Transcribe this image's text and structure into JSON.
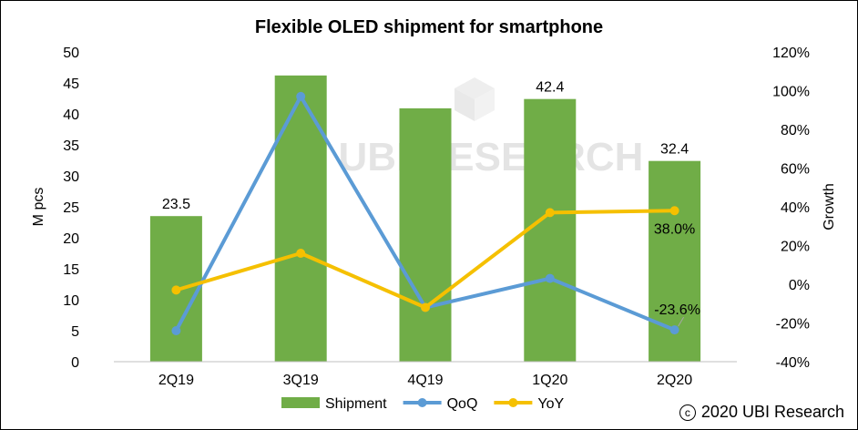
{
  "chart_data": {
    "type": "bar",
    "title": "Flexible OLED shipment for smartphone",
    "categories": [
      "2Q19",
      "3Q19",
      "4Q19",
      "1Q20",
      "2Q20"
    ],
    "series": [
      {
        "name": "Shipment",
        "type": "bar",
        "axis": "left",
        "values": [
          23.5,
          46.2,
          40.9,
          42.4,
          32.4
        ],
        "color": "#70ad47"
      },
      {
        "name": "QoQ",
        "type": "line",
        "axis": "right",
        "values": [
          -24,
          97,
          -12,
          3,
          -23.6
        ],
        "color": "#5b9bd5"
      },
      {
        "name": "YoY",
        "type": "line",
        "axis": "right",
        "values": [
          -3,
          16,
          -12,
          37,
          38.0
        ],
        "color": "#f5c000"
      }
    ],
    "data_labels": [
      {
        "series": "Shipment",
        "index": 0,
        "text": "23.5"
      },
      {
        "series": "Shipment",
        "index": 3,
        "text": "42.4"
      },
      {
        "series": "Shipment",
        "index": 4,
        "text": "32.4"
      },
      {
        "series": "YoY",
        "index": 4,
        "text": "38.0%"
      },
      {
        "series": "QoQ",
        "index": 4,
        "text": "-23.6%"
      }
    ],
    "ylabel": "M pcs",
    "y2label": "Growth",
    "ylim": [
      0,
      50
    ],
    "y_ticks": [
      "0",
      "5",
      "10",
      "15",
      "20",
      "25",
      "30",
      "35",
      "40",
      "45",
      "50"
    ],
    "y2lim": [
      -40,
      120
    ],
    "y2_ticks": [
      "-40%",
      "-20%",
      "0%",
      "20%",
      "40%",
      "60%",
      "80%",
      "100%",
      "120%"
    ],
    "grid": false,
    "legend_position": "bottom"
  },
  "watermark": "UBI RESEARCH",
  "copyright": {
    "symbol": "c",
    "text": "2020 UBI Research"
  }
}
